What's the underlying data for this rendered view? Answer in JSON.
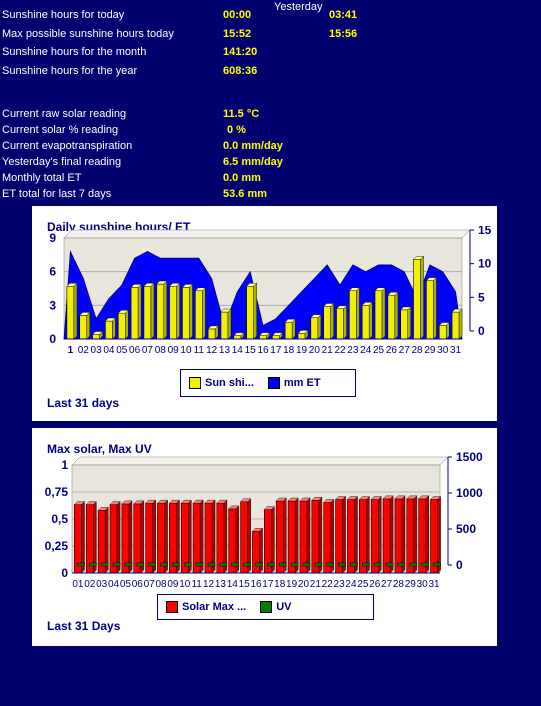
{
  "stats": {
    "yesterday_header": "Yesterday",
    "rows": [
      {
        "label": "Sunshine hours for today",
        "today": "00:00",
        "yesterday": "03:41"
      },
      {
        "label": "Max possible sunshine hours today",
        "today": "15:52",
        "yesterday": "15:56"
      },
      {
        "label": "Sunshine hours for the month",
        "today": "141:20"
      },
      {
        "label": "Sunshine hours for the year",
        "today": "608:36"
      },
      {
        "label": "Current raw solar reading",
        "today": "11.5 °C"
      },
      {
        "label": "Current solar % reading",
        "today": "0 %"
      },
      {
        "label": "Current evapotranspiration",
        "today": "0.0 mm/day"
      },
      {
        "label": "Yesterday's final reading",
        "today": "6.5 mm/day"
      },
      {
        "label": "Monthly total ET",
        "today": "0.0 mm"
      },
      {
        "label": "ET total for last 7 days",
        "today": "53.6 mm"
      }
    ]
  },
  "colors": {
    "page_bg": "#00006e",
    "label": "#ffffff",
    "value": "#ffff00",
    "chart_axis": "#000080",
    "plot_bg": "#e8e6dc",
    "sun_bar": "#f0f000",
    "et_area": "#0000ff",
    "solar_bar": "#ff0000",
    "uv_bar": "#008000"
  },
  "chart_data": [
    {
      "type": "bar",
      "title": "Daily sunshine hours/ ET",
      "footer": "Last 31 days",
      "categories": [
        "1",
        "02",
        "03",
        "04",
        "05",
        "06",
        "07",
        "08",
        "09",
        "10",
        "11",
        "12",
        "13",
        "14",
        "15",
        "16",
        "17",
        "18",
        "19",
        "20",
        "21",
        "22",
        "23",
        "24",
        "25",
        "26",
        "27",
        "28",
        "29",
        "30",
        "31"
      ],
      "y_left": {
        "ticks": [
          "0",
          "3",
          "6",
          "9"
        ],
        "range": [
          0,
          9
        ]
      },
      "y_right": {
        "ticks": [
          "0",
          "5",
          "10",
          "15"
        ],
        "range": [
          0,
          15
        ]
      },
      "series": [
        {
          "name": "Sun shi...",
          "type": "bar",
          "axis": "left",
          "values": [
            4.7,
            2.1,
            0.4,
            1.6,
            2.3,
            4.6,
            4.7,
            4.9,
            4.7,
            4.6,
            4.3,
            0.9,
            2.4,
            0.3,
            4.7,
            0.3,
            0.3,
            1.5,
            0.5,
            1.9,
            2.9,
            2.7,
            4.3,
            3.0,
            4.3,
            3.9,
            2.6,
            7.1,
            5.2,
            1.2,
            2.4
          ]
        },
        {
          "name": "mm ET",
          "type": "area",
          "axis": "right",
          "values": [
            13,
            9,
            3,
            6,
            8,
            12,
            13,
            12,
            12,
            12,
            12,
            9,
            2,
            7,
            10,
            2,
            3,
            5,
            7,
            9,
            11,
            8,
            11,
            10,
            11,
            11,
            10,
            6,
            11,
            10,
            7
          ]
        }
      ],
      "legend_position": "bottom"
    },
    {
      "type": "bar",
      "title": "Max solar, Max UV",
      "footer": "Last 31 Days",
      "categories": [
        "01",
        "02",
        "03",
        "04",
        "05",
        "06",
        "07",
        "08",
        "09",
        "10",
        "11",
        "12",
        "13",
        "14",
        "15",
        "16",
        "17",
        "18",
        "19",
        "20",
        "21",
        "22",
        "23",
        "24",
        "25",
        "26",
        "27",
        "28",
        "29",
        "30",
        "31"
      ],
      "y_left": {
        "ticks": [
          "0",
          "0,25",
          "0,5",
          "0,75",
          "1"
        ],
        "range": [
          0,
          1
        ]
      },
      "y_right": {
        "ticks": [
          "0",
          "500",
          "1000",
          "1500"
        ],
        "range": [
          0,
          1500
        ]
      },
      "series": [
        {
          "name": "Solar Max ...",
          "type": "bar",
          "axis": "right",
          "values": [
            950,
            950,
            870,
            950,
            960,
            960,
            970,
            970,
            970,
            970,
            970,
            970,
            970,
            890,
            990,
            580,
            880,
            1000,
            1000,
            1000,
            1010,
            980,
            1020,
            1020,
            1020,
            1020,
            1030,
            1030,
            1030,
            1030,
            1020
          ]
        },
        {
          "name": "UV",
          "type": "bar",
          "axis": "left",
          "values": [
            0,
            0,
            0,
            0,
            0,
            0,
            0,
            0,
            0,
            0,
            0,
            0,
            0,
            0,
            0,
            0,
            0,
            0,
            0,
            0,
            0,
            0,
            0,
            0,
            0,
            0,
            0,
            0,
            0,
            0,
            0
          ]
        }
      ],
      "legend_position": "bottom"
    }
  ]
}
